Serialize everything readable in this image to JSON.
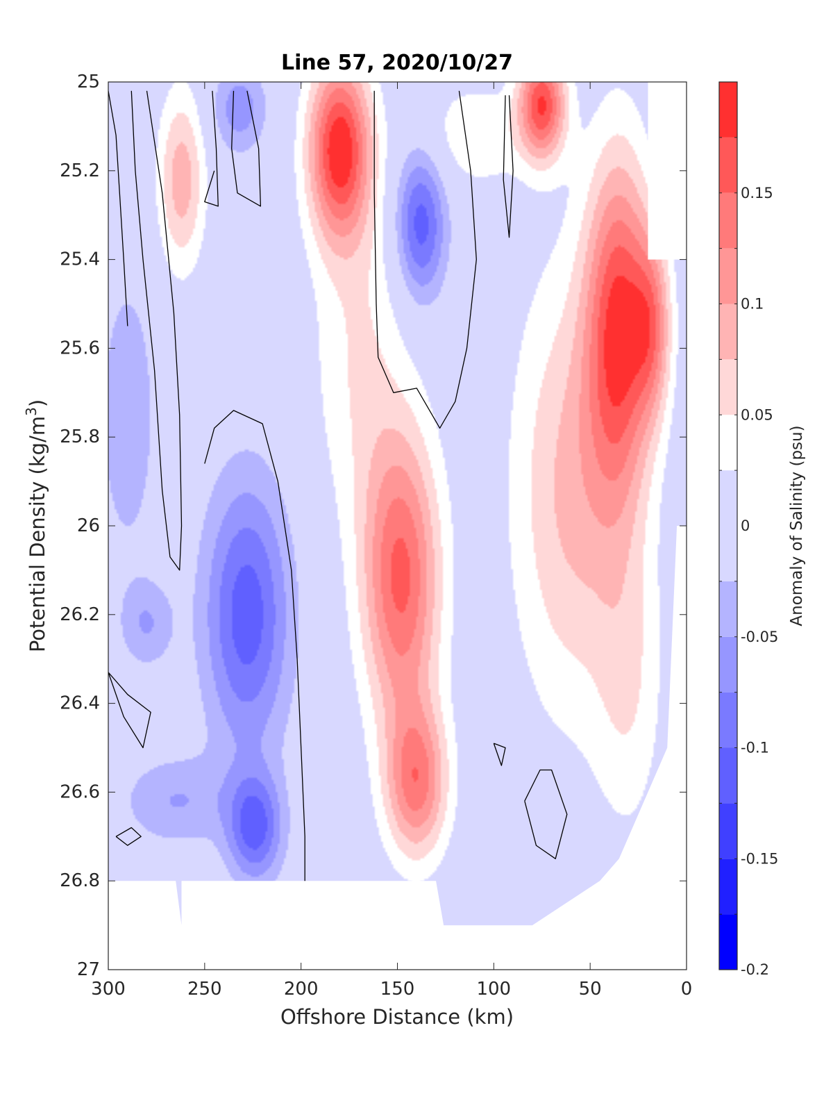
{
  "chart_data": {
    "type": "heatmap",
    "title": "Line 57, 2020/10/27",
    "xlabel": "Offshore Distance (km)",
    "ylabel": "Potential Density (kg/m",
    "ylabel_sup": "3",
    "ylabel_close": ")",
    "xlim": [
      300,
      0
    ],
    "x_reversed": true,
    "ylim": [
      25,
      27
    ],
    "y_reversed": true,
    "x_ticks": [
      300,
      250,
      200,
      150,
      100,
      50,
      0
    ],
    "x_tick_labels": [
      "300",
      "250",
      "200",
      "150",
      "100",
      "50",
      "0"
    ],
    "y_ticks": [
      25,
      25.2,
      25.4,
      25.6,
      25.8,
      26,
      26.2,
      26.4,
      26.6,
      26.8,
      27
    ],
    "y_tick_labels": [
      "25",
      "25.2",
      "25.4",
      "25.6",
      "25.8",
      "26",
      "26.2",
      "26.4",
      "26.6",
      "26.8",
      "27"
    ],
    "colorbar": {
      "label": "Anomaly of Salinity (psu)",
      "range": [
        -0.2,
        0.2
      ],
      "ticks": [
        -0.2,
        -0.15,
        -0.1,
        -0.05,
        0,
        0.05,
        0.1,
        0.15
      ],
      "tick_labels": [
        "-0.2",
        "-0.15",
        "-0.1",
        "-0.05",
        "0",
        "0.05",
        "0.1",
        "0.15"
      ],
      "levels": [
        -0.2,
        -0.175,
        -0.15,
        -0.125,
        -0.1,
        -0.075,
        -0.05,
        -0.025,
        0.025,
        0.05,
        0.075,
        0.1,
        0.125,
        0.15,
        0.175,
        0.2
      ],
      "colors": [
        "#0000ff",
        "#2020ff",
        "#4040ff",
        "#6060ff",
        "#7a7aff",
        "#9696ff",
        "#b4b4ff",
        "#d8d8ff",
        "#ffffff",
        "#ffd8d8",
        "#ffb4b4",
        "#ff9696",
        "#ff7a7a",
        "#ff5858",
        "#ff3030",
        "#ff0000"
      ]
    },
    "field_features": [
      {
        "x": 180,
        "y": 25.15,
        "sx": 16,
        "sy": 0.2,
        "value": 0.19
      },
      {
        "x": 262,
        "y": 25.22,
        "sx": 12,
        "sy": 0.2,
        "value": 0.09
      },
      {
        "x": 138,
        "y": 25.32,
        "sx": 13,
        "sy": 0.17,
        "value": -0.115
      },
      {
        "x": 232,
        "y": 25.06,
        "sx": 14,
        "sy": 0.1,
        "value": -0.065
      },
      {
        "x": 148,
        "y": 26.12,
        "sx": 20,
        "sy": 0.33,
        "value": 0.155
      },
      {
        "x": 140,
        "y": 26.58,
        "sx": 16,
        "sy": 0.17,
        "value": 0.13
      },
      {
        "x": 228,
        "y": 26.2,
        "sx": 22,
        "sy": 0.3,
        "value": -0.115
      },
      {
        "x": 224,
        "y": 26.68,
        "sx": 14,
        "sy": 0.12,
        "value": -0.11
      },
      {
        "x": 35,
        "y": 25.55,
        "sx": 17,
        "sy": 0.38,
        "value": 0.17
      },
      {
        "x": 60,
        "y": 25.92,
        "sx": 30,
        "sy": 0.5,
        "value": 0.08
      },
      {
        "x": 18,
        "y": 25.55,
        "sx": 10,
        "sy": 0.2,
        "value": 0.1
      },
      {
        "x": 75,
        "y": 25.05,
        "sx": 12,
        "sy": 0.12,
        "value": 0.17
      },
      {
        "x": 290,
        "y": 25.75,
        "sx": 14,
        "sy": 0.3,
        "value": -0.05
      },
      {
        "x": 280,
        "y": 26.22,
        "sx": 14,
        "sy": 0.1,
        "value": -0.05
      },
      {
        "x": 265,
        "y": 26.62,
        "sx": 28,
        "sy": 0.1,
        "value": -0.05
      },
      {
        "x": 170,
        "y": 25.6,
        "sx": 24,
        "sy": 0.4,
        "value": 0.05
      },
      {
        "x": 110,
        "y": 25.12,
        "sx": 28,
        "sy": 0.12,
        "value": 0.045
      },
      {
        "x": 30,
        "y": 26.35,
        "sx": 18,
        "sy": 0.35,
        "value": 0.045
      }
    ],
    "zero_contours": [
      [
        [
          300,
          25.02
        ],
        [
          296,
          25.12
        ],
        [
          294,
          25.26
        ],
        [
          292,
          25.4
        ],
        [
          290,
          25.55
        ]
      ],
      [
        [
          280,
          25.02
        ],
        [
          272,
          25.25
        ],
        [
          266,
          25.52
        ],
        [
          263,
          25.75
        ],
        [
          262,
          26.0
        ],
        [
          263,
          26.1
        ],
        [
          268,
          26.07
        ],
        [
          272,
          25.92
        ],
        [
          276,
          25.65
        ],
        [
          282,
          25.4
        ],
        [
          286,
          25.2
        ],
        [
          288,
          25.02
        ]
      ],
      [
        [
          246,
          25.02
        ],
        [
          244,
          25.15
        ],
        [
          243,
          25.28
        ],
        [
          250,
          25.27
        ],
        [
          245,
          25.2
        ]
      ],
      [
        [
          228,
          25.02
        ],
        [
          222,
          25.15
        ],
        [
          221,
          25.28
        ],
        [
          233,
          25.25
        ],
        [
          236,
          25.15
        ],
        [
          235,
          25.02
        ]
      ],
      [
        [
          250,
          25.86
        ],
        [
          245,
          25.78
        ],
        [
          235,
          25.74
        ],
        [
          220,
          25.77
        ],
        [
          212,
          25.9
        ],
        [
          205,
          26.1
        ],
        [
          202,
          26.3
        ],
        [
          200,
          26.5
        ],
        [
          198,
          26.7
        ],
        [
          198,
          26.8
        ]
      ],
      [
        [
          162,
          25.02
        ],
        [
          162,
          25.25
        ],
        [
          161,
          25.5
        ],
        [
          160,
          25.62
        ],
        [
          152,
          25.7
        ],
        [
          140,
          25.69
        ],
        [
          128,
          25.78
        ],
        [
          120,
          25.72
        ],
        [
          114,
          25.6
        ],
        [
          109,
          25.4
        ],
        [
          112,
          25.2
        ],
        [
          118,
          25.02
        ]
      ],
      [
        [
          92,
          25.03
        ],
        [
          90,
          25.2
        ],
        [
          92,
          25.35
        ],
        [
          95,
          25.22
        ],
        [
          94,
          25.03
        ]
      ],
      [
        [
          300,
          26.33
        ],
        [
          292,
          26.43
        ],
        [
          282,
          26.5
        ],
        [
          278,
          26.42
        ],
        [
          290,
          26.38
        ],
        [
          300,
          26.33
        ]
      ],
      [
        [
          296,
          26.7
        ],
        [
          290,
          26.72
        ],
        [
          283,
          26.7
        ],
        [
          288,
          26.68
        ],
        [
          296,
          26.7
        ]
      ],
      [
        [
          100,
          26.49
        ],
        [
          96,
          26.54
        ],
        [
          94,
          26.5
        ],
        [
          100,
          26.49
        ]
      ],
      [
        [
          84,
          26.62
        ],
        [
          76,
          26.55
        ],
        [
          70,
          26.55
        ],
        [
          62,
          26.65
        ],
        [
          68,
          26.75
        ],
        [
          78,
          26.72
        ],
        [
          84,
          26.62
        ]
      ]
    ],
    "data_bottom": [
      [
        300,
        26.8
      ],
      [
        265,
        26.8
      ],
      [
        262,
        26.9
      ],
      [
        262,
        26.8
      ],
      [
        130,
        26.8
      ],
      [
        126,
        26.9
      ],
      [
        80,
        26.9
      ],
      [
        45,
        26.8
      ],
      [
        35,
        26.75
      ],
      [
        20,
        26.6
      ],
      [
        10,
        26.5
      ],
      [
        5,
        26.0
      ],
      [
        0,
        26.0
      ]
    ],
    "blank_top_right": [
      [
        20,
        25.0
      ],
      [
        0,
        25.0
      ],
      [
        0,
        25.4
      ],
      [
        20,
        25.4
      ]
    ]
  }
}
